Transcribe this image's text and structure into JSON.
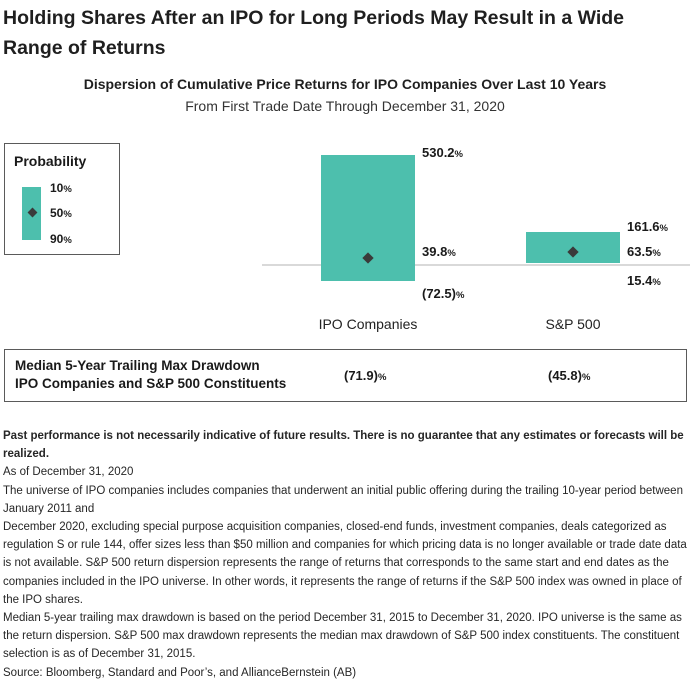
{
  "header": {
    "title": "Holding Shares After an IPO for Long Periods May Result in a Wide Range of Returns"
  },
  "chart_data": {
    "type": "bar",
    "title": "Dispersion of Cumulative Price Returns for IPO Companies Over Last 10 Years",
    "subtitle": "From First Trade Date Through December 31, 2020",
    "categories": [
      "IPO Companies",
      "S&P 500"
    ],
    "series": [
      {
        "name": "10%",
        "values": [
          530.2,
          161.6
        ]
      },
      {
        "name": "50%",
        "values": [
          39.8,
          63.5
        ]
      },
      {
        "name": "90%",
        "values": [
          -72.5,
          15.4
        ]
      }
    ],
    "value_labels": {
      "top": [
        "530.2",
        "161.6"
      ],
      "median": [
        "39.8",
        "63.5"
      ],
      "bottom": [
        "(72.5)",
        "15.4"
      ]
    },
    "unit": "%",
    "bar_color": "#4dbfad",
    "marker_color": "#3a3a3a",
    "legend": {
      "title": "Probability",
      "placement": "left",
      "labels": [
        "10",
        "50",
        "90"
      ]
    },
    "axis_color": "#b3b3b3"
  },
  "drawdown": {
    "label_line1": "Median 5-Year Trailing Max Drawdown",
    "label_line2": "IPO Companies and S&P 500 Constituents",
    "ipo_value": "(71.9)",
    "sp_value": "(45.8)",
    "unit": "%"
  },
  "notes": {
    "disclaimer": "Past performance is not necessarily indicative of future results. There is no guarantee that any estimates or forecasts will be realized.",
    "as_of": "As of December 31, 2020",
    "universe_1": "The universe of IPO companies includes companies that underwent an initial public offering during the trailing 10-year period between January 2011 and",
    "universe_2": "December 2020, excluding special purpose acquisition companies, closed-end funds, investment companies, deals categorized as regulation S or rule 144, offer sizes less than $50 million and companies for which pricing data is no longer available or trade date data is not available. S&P 500 return dispersion represents the range of returns that corresponds to the same start and end dates as the companies included in the IPO universe. In other words, it represents the range of returns if the S&P 500 index was owned in place of the IPO shares.",
    "drawdown_note": "Median 5-year trailing max drawdown is based on the period December 31, 2015 to December 31, 2020. IPO universe is the same as the return dispersion. S&P 500 max drawdown represents the median max drawdown of S&P 500 index constituents. The constituent selection is as of December 31, 2015.",
    "source": "Source: Bloomberg, Standard and Poor’s,  and AllianceBernstein (AB)"
  }
}
